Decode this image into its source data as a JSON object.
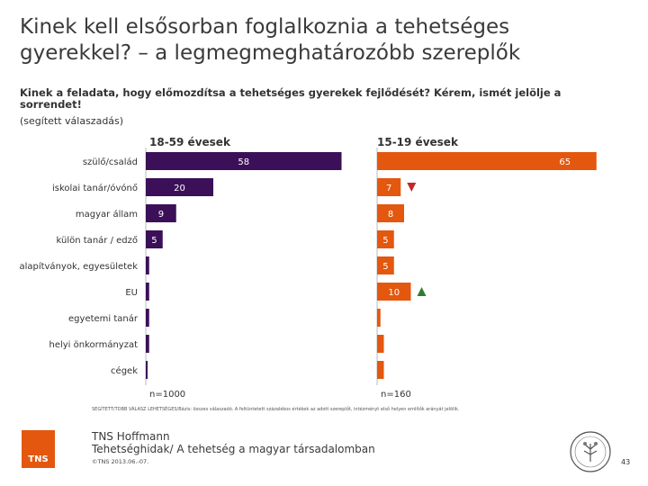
{
  "slide": {
    "title_line1": "Kinek kell elsősorban foglalkoznia a tehetséges",
    "title_line2": "gyerekkel? – a legmegmeghatározóbb szereplők",
    "question_line1": "Kinek a feladata, hogy előmozdítsa a tehetséges gyerekek fejlődését? Kérem, ismét jelölje a",
    "question_line2": "sorrendet!",
    "note": "(segített válaszadás)",
    "footnote": "SEGÍTETT/TOBB VÁLASZ LEHETSÉGES/Bázis: összes válaszadó. A feltüntetett százalékos értékek az adott szereplőt, intézményt első helyen említők arányát jelölik.",
    "brand": "TNS Hoffmann",
    "brand_subtitle": "Tehetséghidak/ A tehetség a magyar társadalomban",
    "copyright": "©TNS 2013.06.-07.",
    "page_number": "43",
    "logo_text": "TNS"
  },
  "chart_data": {
    "type": "bar",
    "orientation": "horizontal",
    "categories": [
      "szülő/család",
      "iskolai tanár/óvónő",
      "magyar állam",
      "külön tanár / edző",
      "alapítványok, egyesületek",
      "EU",
      "egyetemi tanár",
      "helyi önkormányzat",
      "cégek"
    ],
    "series": [
      {
        "name": "18-59 évesek",
        "color": "#3b1058",
        "base": "n=1000",
        "values": [
          58,
          20,
          9,
          5,
          1,
          1,
          1,
          1,
          0
        ],
        "labels": [
          "58",
          "20",
          "9",
          "5",
          "",
          "",
          "",
          "",
          ""
        ]
      },
      {
        "name": "15-19 évesek",
        "color": "#e4570e",
        "base": "n=160",
        "values": [
          65,
          7,
          8,
          5,
          5,
          10,
          1,
          2,
          2
        ],
        "labels": [
          "65",
          "7",
          "8",
          "5",
          "5",
          "10",
          "",
          "",
          ""
        ],
        "markers": [
          null,
          "down",
          null,
          null,
          null,
          "up",
          null,
          null,
          null
        ]
      }
    ],
    "marker_colors": {
      "down": "#c0282d",
      "up": "#2e7d32"
    },
    "xlim": [
      0,
      100
    ]
  }
}
